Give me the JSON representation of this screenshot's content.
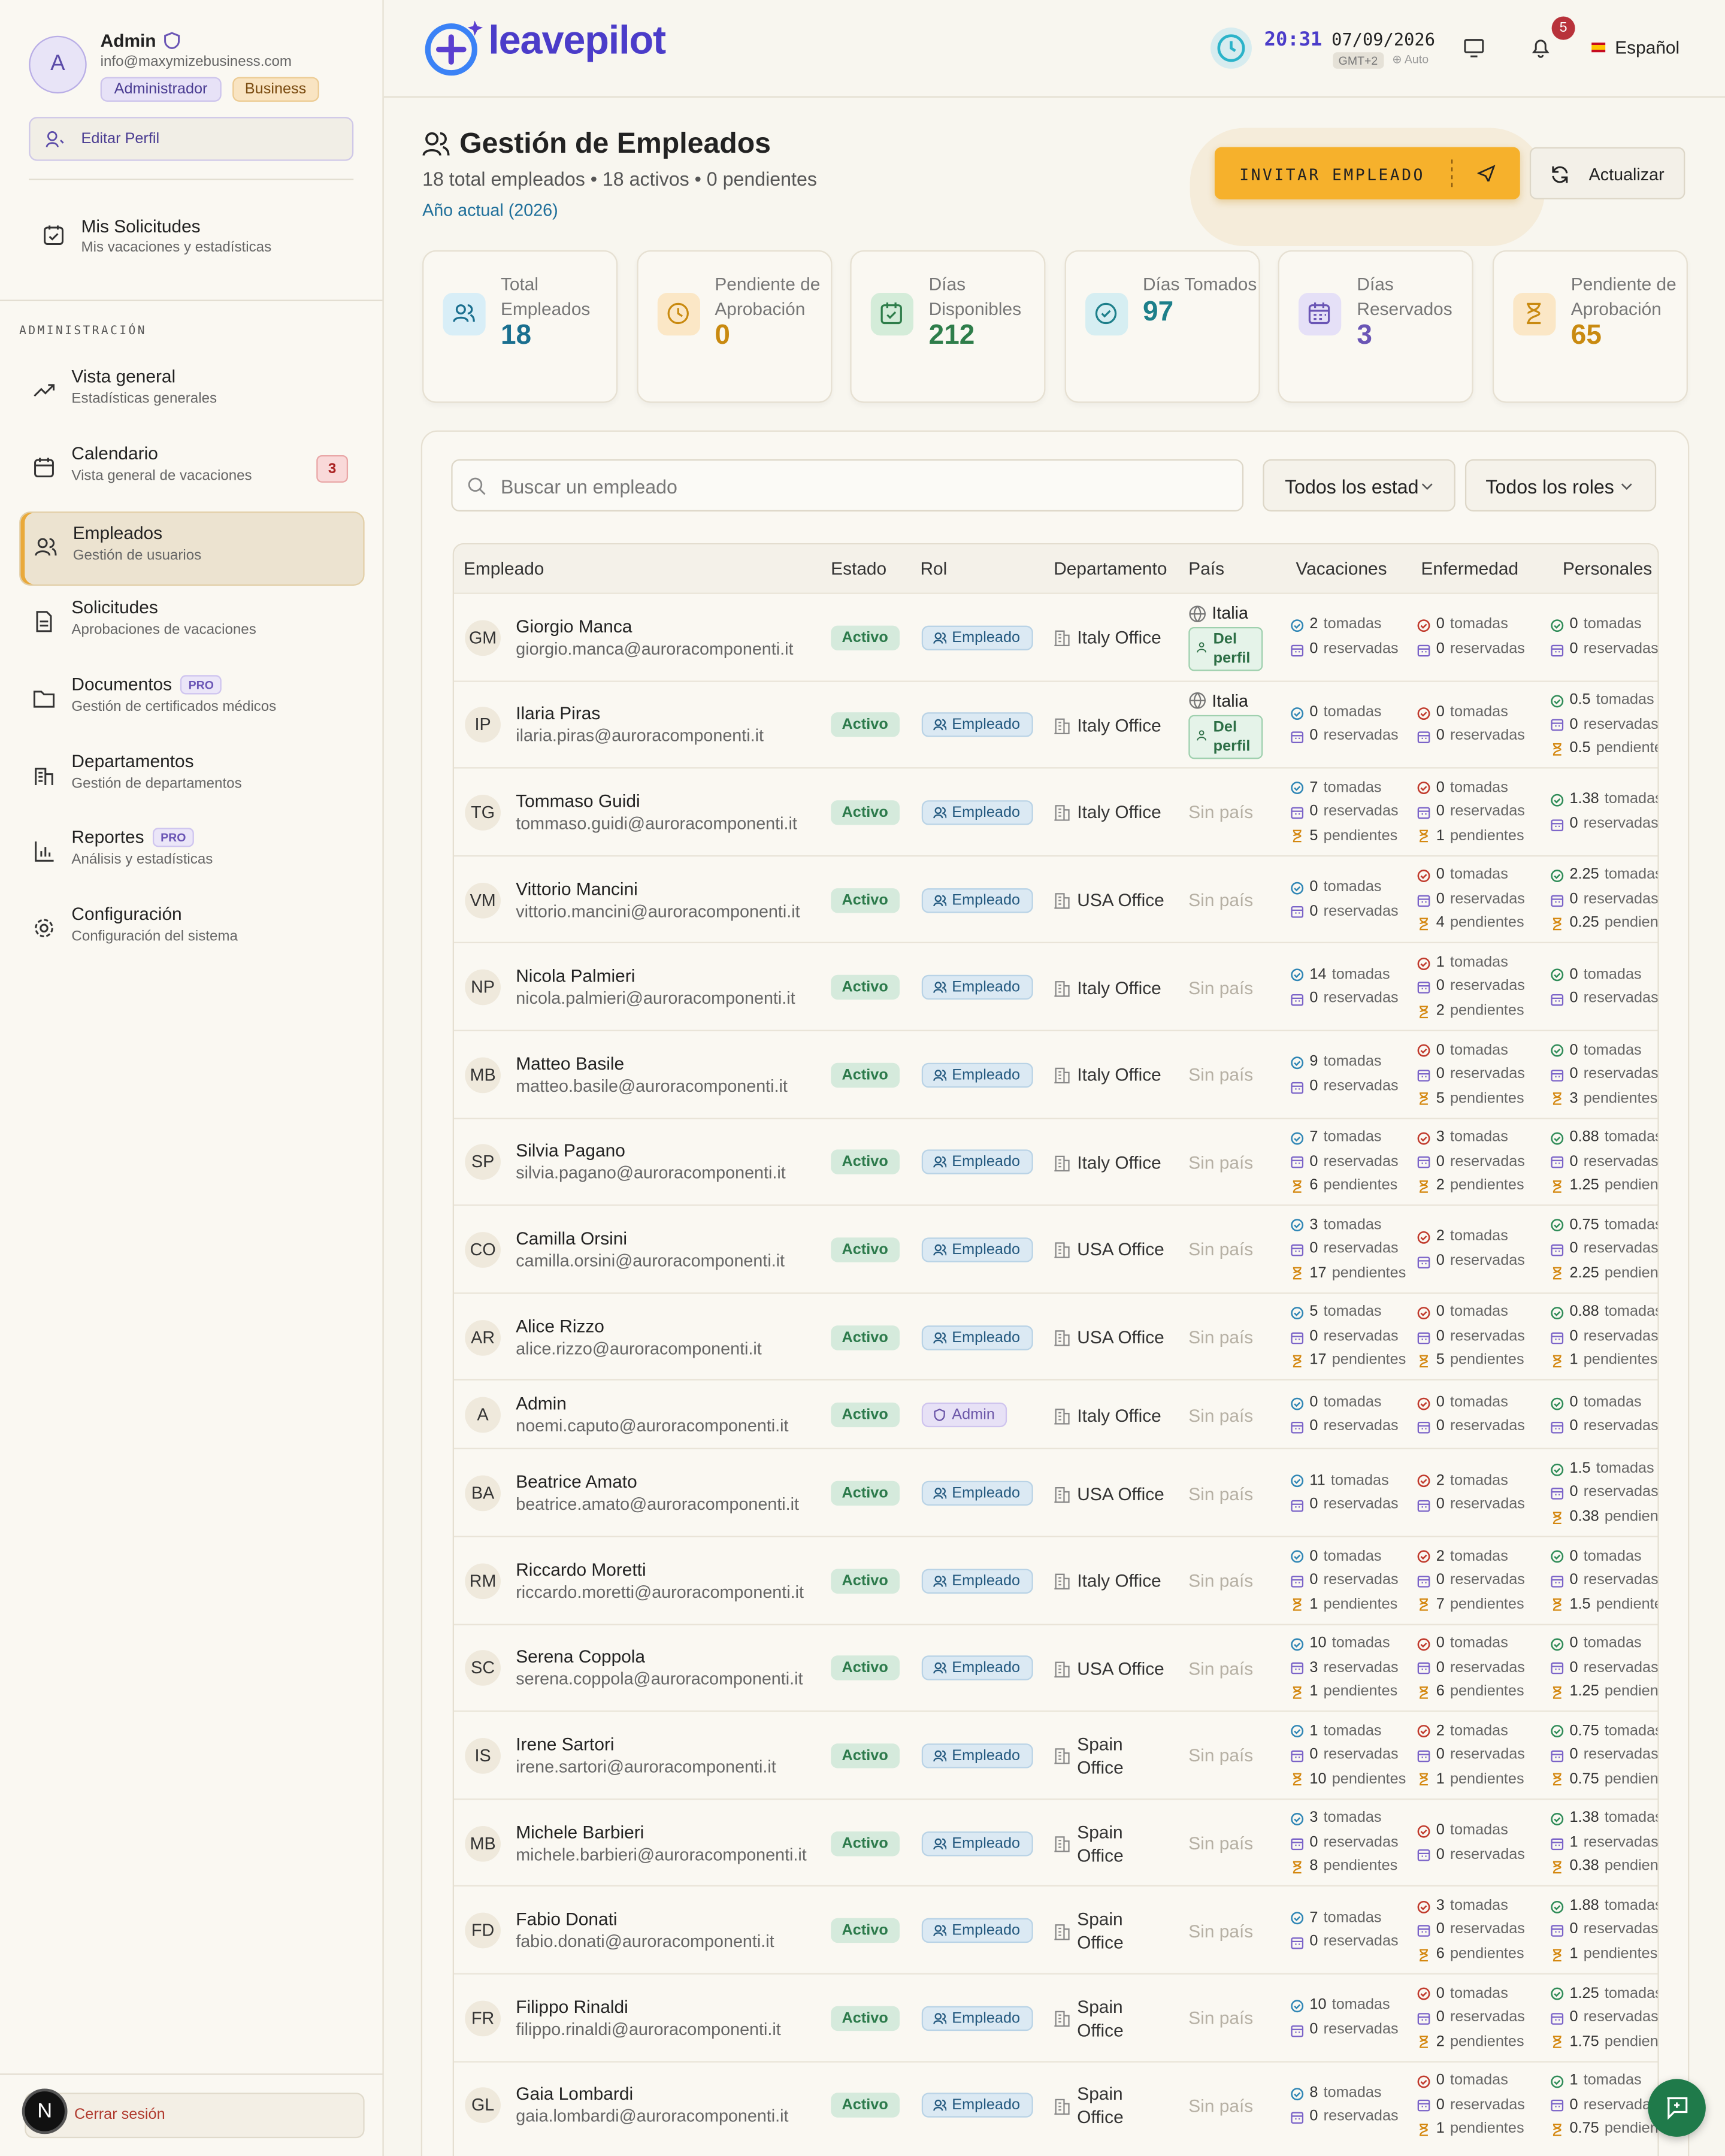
{
  "sidebar": {
    "user": {
      "initial": "A",
      "name": "Admin",
      "email": "info@maxymizebusiness.com",
      "badges": [
        "Administrador",
        "Business"
      ]
    },
    "edit_profile": "Editar Perfil",
    "my_requests": {
      "title": "Mis Solicitudes",
      "subtitle": "Mis vacaciones y estadísticas"
    },
    "section": "ADMINISTRACIÓN",
    "nav": [
      {
        "title": "Vista general",
        "subtitle": "Estadísticas generales"
      },
      {
        "title": "Calendario",
        "subtitle": "Vista general de vacaciones",
        "badge": 3
      },
      {
        "title": "Empleados",
        "subtitle": "Gestión de usuarios",
        "active": true
      },
      {
        "title": "Solicitudes",
        "subtitle": "Aprobaciones de vacaciones"
      },
      {
        "title": "Documentos",
        "subtitle": "Gestión de certificados médicos",
        "tag": "PRO"
      },
      {
        "title": "Departamentos",
        "subtitle": "Gestión de departamentos"
      },
      {
        "title": "Reportes",
        "subtitle": "Análisis y estadísticas",
        "tag": "PRO"
      },
      {
        "title": "Configuración",
        "subtitle": "Configuración del sistema"
      }
    ],
    "logout": "Cerrar sesión",
    "dev_badge": "N"
  },
  "header": {
    "logo": "leavepilot",
    "time": "20:31",
    "date": "07/09/2026",
    "timezone": "GMT+2",
    "tz_mode": "Auto",
    "notifications": 5,
    "language": "Español"
  },
  "page": {
    "title": "Gestión de Empleados",
    "summary": "18 total empleados • 18 activos • 0 pendientes",
    "period": "Año actual (2026)",
    "invite": "INVITAR EMPLEADO",
    "refresh": "Actualizar"
  },
  "stats": [
    {
      "label": "Total Empleados",
      "value": 18
    },
    {
      "label": "Pendiente de Aprobación",
      "value": 0
    },
    {
      "label": "Días Disponibles",
      "value": 212
    },
    {
      "label": "Días Tomados",
      "value": 97
    },
    {
      "label": "Días Reservados",
      "value": 3
    },
    {
      "label": "Pendiente de Aprobación",
      "value": 65
    }
  ],
  "filters": {
    "search": "Buscar un empleado",
    "status": "Todos los estad",
    "roles": "Todos los roles"
  },
  "table": {
    "columns": [
      "Empleado",
      "Estado",
      "Rol",
      "Departamento",
      "País",
      "Vacaciones",
      "Enfermedad",
      "Personales"
    ],
    "leave_labels": [
      "tomadas",
      "reservadas",
      "pendientes"
    ],
    "rows": [
      {
        "initials": "GM",
        "name": "Giorgio Manca",
        "email": "giorgio.manca@auroracomponenti.it",
        "status": "Activo",
        "role": "Empleado",
        "department": "Italy Office",
        "country": "Italia",
        "country_source": "Del perfil",
        "vacaciones": [
          2,
          0
        ],
        "enfermedad": [
          0,
          0
        ],
        "personales": [
          0,
          0
        ]
      },
      {
        "initials": "IP",
        "name": "Ilaria Piras",
        "email": "ilaria.piras@auroracomponenti.it",
        "status": "Activo",
        "role": "Empleado",
        "department": "Italy Office",
        "country": "Italia",
        "country_source": "Del perfil",
        "vacaciones": [
          0,
          0
        ],
        "enfermedad": [
          0,
          0
        ],
        "personales": [
          0.5,
          0,
          0.5
        ]
      },
      {
        "initials": "TG",
        "name": "Tommaso Guidi",
        "email": "tommaso.guidi@auroracomponenti.it",
        "status": "Activo",
        "role": "Empleado",
        "department": "Italy Office",
        "country": "Sin país",
        "vacaciones": [
          7,
          0,
          5
        ],
        "enfermedad": [
          0,
          0,
          1
        ],
        "personales": [
          1.38,
          0
        ]
      },
      {
        "initials": "VM",
        "name": "Vittorio Mancini",
        "email": "vittorio.mancini@auroracomponenti.it",
        "status": "Activo",
        "role": "Empleado",
        "department": "USA Office",
        "country": "Sin país",
        "vacaciones": [
          0,
          0
        ],
        "enfermedad": [
          0,
          0,
          4
        ],
        "personales": [
          2.25,
          0,
          0.25
        ]
      },
      {
        "initials": "NP",
        "name": "Nicola Palmieri",
        "email": "nicola.palmieri@auroracomponenti.it",
        "status": "Activo",
        "role": "Empleado",
        "department": "Italy Office",
        "country": "Sin país",
        "vacaciones": [
          14,
          0
        ],
        "enfermedad": [
          1,
          0,
          2
        ],
        "personales": [
          0,
          0
        ]
      },
      {
        "initials": "MB",
        "name": "Matteo Basile",
        "email": "matteo.basile@auroracomponenti.it",
        "status": "Activo",
        "role": "Empleado",
        "department": "Italy Office",
        "country": "Sin país",
        "vacaciones": [
          9,
          0
        ],
        "enfermedad": [
          0,
          0,
          5
        ],
        "personales": [
          0,
          0,
          3
        ]
      },
      {
        "initials": "SP",
        "name": "Silvia Pagano",
        "email": "silvia.pagano@auroracomponenti.it",
        "status": "Activo",
        "role": "Empleado",
        "department": "Italy Office",
        "country": "Sin país",
        "vacaciones": [
          7,
          0,
          6
        ],
        "enfermedad": [
          3,
          0,
          2
        ],
        "personales": [
          0.88,
          0,
          1.25
        ]
      },
      {
        "initials": "CO",
        "name": "Camilla Orsini",
        "email": "camilla.orsini@auroracomponenti.it",
        "status": "Activo",
        "role": "Empleado",
        "department": "USA Office",
        "country": "Sin país",
        "vacaciones": [
          3,
          0,
          17
        ],
        "enfermedad": [
          2,
          0
        ],
        "personales": [
          0.75,
          0,
          2.25
        ]
      },
      {
        "initials": "AR",
        "name": "Alice Rizzo",
        "email": "alice.rizzo@auroracomponenti.it",
        "status": "Activo",
        "role": "Empleado",
        "department": "USA Office",
        "country": "Sin país",
        "vacaciones": [
          5,
          0,
          17
        ],
        "enfermedad": [
          0,
          0,
          5
        ],
        "personales": [
          0.88,
          0,
          1
        ]
      },
      {
        "initials": "A",
        "name": "Admin",
        "email": "noemi.caputo@auroracomponenti.it",
        "status": "Activo",
        "role": "Admin",
        "department": "Italy Office",
        "country": "Sin país",
        "vacaciones": [
          0,
          0
        ],
        "enfermedad": [
          0,
          0
        ],
        "personales": [
          0,
          0
        ]
      },
      {
        "initials": "BA",
        "name": "Beatrice Amato",
        "email": "beatrice.amato@auroracomponenti.it",
        "status": "Activo",
        "role": "Empleado",
        "department": "USA Office",
        "country": "Sin país",
        "vacaciones": [
          11,
          0
        ],
        "enfermedad": [
          2,
          0
        ],
        "personales": [
          1.5,
          0,
          0.38
        ]
      },
      {
        "initials": "RM",
        "name": "Riccardo Moretti",
        "email": "riccardo.moretti@auroracomponenti.it",
        "status": "Activo",
        "role": "Empleado",
        "department": "Italy Office",
        "country": "Sin país",
        "vacaciones": [
          0,
          0,
          1
        ],
        "enfermedad": [
          2,
          0,
          7
        ],
        "personales": [
          0,
          0,
          1.5
        ]
      },
      {
        "initials": "SC",
        "name": "Serena Coppola",
        "email": "serena.coppola@auroracomponenti.it",
        "status": "Activo",
        "role": "Empleado",
        "department": "USA Office",
        "country": "Sin país",
        "vacaciones": [
          10,
          3,
          1
        ],
        "enfermedad": [
          0,
          0,
          6
        ],
        "personales": [
          0,
          0,
          1.25
        ]
      },
      {
        "initials": "IS",
        "name": "Irene Sartori",
        "email": "irene.sartori@auroracomponenti.it",
        "status": "Activo",
        "role": "Empleado",
        "department": "Spain Office",
        "country": "Sin país",
        "vacaciones": [
          1,
          0,
          10
        ],
        "enfermedad": [
          2,
          0,
          1
        ],
        "personales": [
          0.75,
          0,
          0.75
        ]
      },
      {
        "initials": "MB",
        "name": "Michele Barbieri",
        "email": "michele.barbieri@auroracomponenti.it",
        "status": "Activo",
        "role": "Empleado",
        "department": "Spain Office",
        "country": "Sin país",
        "vacaciones": [
          3,
          0,
          8
        ],
        "enfermedad": [
          0,
          0
        ],
        "personales": [
          1.38,
          1,
          0.38
        ]
      },
      {
        "initials": "FD",
        "name": "Fabio Donati",
        "email": "fabio.donati@auroracomponenti.it",
        "status": "Activo",
        "role": "Empleado",
        "department": "Spain Office",
        "country": "Sin país",
        "vacaciones": [
          7,
          0
        ],
        "enfermedad": [
          3,
          0,
          6
        ],
        "personales": [
          1.88,
          0,
          1
        ]
      },
      {
        "initials": "FR",
        "name": "Filippo Rinaldi",
        "email": "filippo.rinaldi@auroracomponenti.it",
        "status": "Activo",
        "role": "Empleado",
        "department": "Spain Office",
        "country": "Sin país",
        "vacaciones": [
          10,
          0
        ],
        "enfermedad": [
          0,
          0,
          2
        ],
        "personales": [
          1.25,
          0,
          1.75
        ]
      },
      {
        "initials": "GL",
        "name": "Gaia Lombardi",
        "email": "gaia.lombardi@auroracomponenti.it",
        "status": "Activo",
        "role": "Empleado",
        "department": "Spain Office",
        "country": "Sin país",
        "vacaciones": [
          8,
          0
        ],
        "enfermedad": [
          0,
          0,
          1
        ],
        "personales": [
          1,
          0,
          0.75
        ]
      }
    ]
  }
}
